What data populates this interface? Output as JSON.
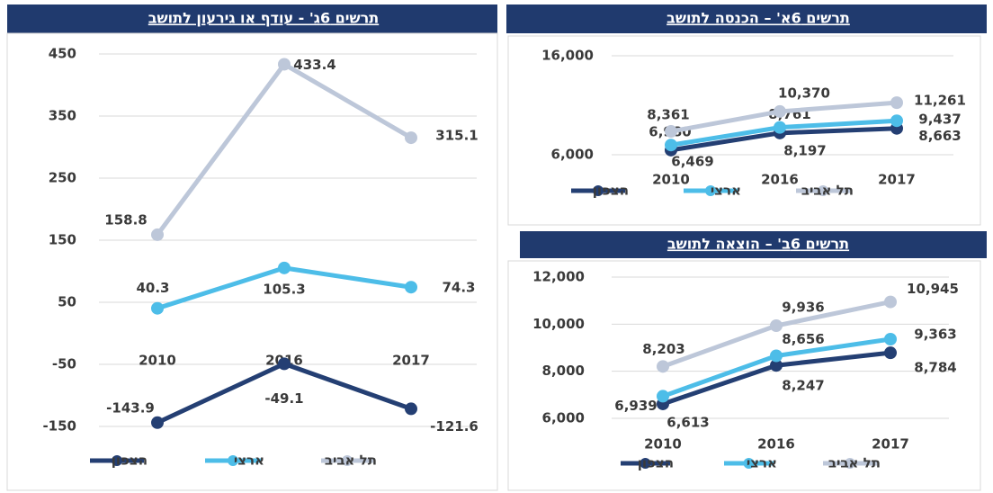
{
  "chart_data": [
    {
      "type": "line",
      "title": "תרשים 6ג' - עודף או גירעון לתושב",
      "categories": [
        "2010",
        "2016",
        "2017"
      ],
      "series": [
        {
          "name": "הצפון",
          "color": "#243f73",
          "values": [
            -143.9,
            -49.1,
            -121.6
          ]
        },
        {
          "name": "ארצי",
          "color": "#4dbde8",
          "values": [
            40.3,
            105.3,
            74.3
          ]
        },
        {
          "name": "תל אביב",
          "color": "#bdc7d9",
          "values": [
            158.8,
            433.4,
            315.1
          ]
        }
      ],
      "ylim": [
        -150,
        450
      ],
      "yticks": [
        -150,
        -50,
        50,
        150,
        250,
        350,
        450
      ],
      "grid": true,
      "legend": "bottom"
    },
    {
      "type": "line",
      "title": "תרשים 6א' – הכנסה לתושב",
      "categories": [
        "2010",
        "2016",
        "2017"
      ],
      "series": [
        {
          "name": "הצפון",
          "color": "#243f73",
          "values": [
            6469,
            8197,
            8663
          ],
          "value_labels": [
            "6,469",
            "8,197",
            "8,663"
          ]
        },
        {
          "name": "ארצי",
          "color": "#4dbde8",
          "values": [
            6980,
            8761,
            9437
          ],
          "value_labels": [
            "6,980",
            "8,761",
            "9,437"
          ]
        },
        {
          "name": "תל אביב",
          "color": "#bdc7d9",
          "values": [
            8361,
            10370,
            11261
          ],
          "value_labels": [
            "8,361",
            "10,370",
            "11,261"
          ]
        }
      ],
      "ylim": [
        6000,
        16000
      ],
      "yticks": [
        {
          "value": 6000,
          "label": "6,000"
        },
        {
          "value": 16000,
          "label": "16,000"
        }
      ],
      "grid": true,
      "legend": "bottom"
    },
    {
      "type": "line",
      "title": "תרשים 6ב' – הוצאה לתושב",
      "categories": [
        "2010",
        "2016",
        "2017"
      ],
      "series": [
        {
          "name": "הצפון",
          "color": "#243f73",
          "values": [
            6613,
            8247,
            8784
          ],
          "value_labels": [
            "6,613",
            "8,247",
            "8,784"
          ]
        },
        {
          "name": "ארצי",
          "color": "#4dbde8",
          "values": [
            6939,
            8656,
            9363
          ],
          "value_labels": [
            "6,939",
            "8,656",
            "9,363"
          ]
        },
        {
          "name": "תל אביב",
          "color": "#bdc7d9",
          "values": [
            8203,
            9936,
            10945
          ],
          "value_labels": [
            "8,203",
            "9,936",
            "10,945"
          ]
        }
      ],
      "ylim": [
        6000,
        12000
      ],
      "yticks": [
        {
          "value": 6000,
          "label": "6,000"
        },
        {
          "value": 8000,
          "label": "8,000"
        },
        {
          "value": 10000,
          "label": "10,000"
        },
        {
          "value": 12000,
          "label": "12,000"
        }
      ],
      "grid": true,
      "legend": "bottom"
    }
  ]
}
